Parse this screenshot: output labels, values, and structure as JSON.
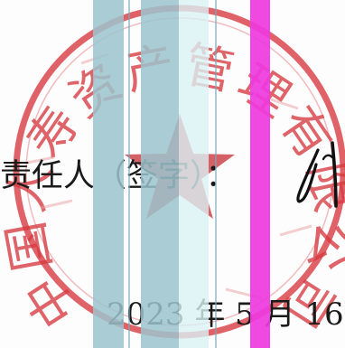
{
  "document": {
    "signatory": {
      "label": "责任人（签字）："
    },
    "date": {
      "text": "2023 年 5 月 16"
    }
  },
  "stamp": {
    "text": "中国人寿资产管理有限公司",
    "color": "#d63a40",
    "symbol": "star-icon"
  },
  "signature": {
    "style": "handwritten-mark",
    "color": "#111111"
  },
  "overlay_bands": {
    "colors": [
      "#9bc4ce",
      "#daf1f4",
      "#ee3ae0"
    ]
  }
}
